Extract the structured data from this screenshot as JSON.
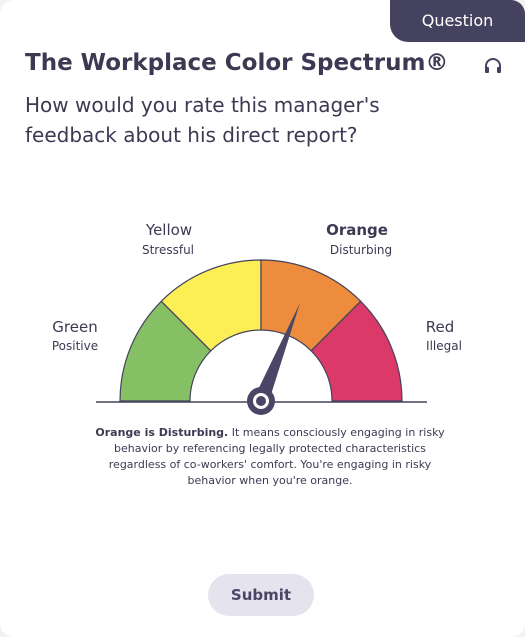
{
  "tab": "Question",
  "title": "The Workplace Color Spectrum®",
  "question": "How would you rate this manager's feedback about his direct report?",
  "gauge": {
    "segments": [
      {
        "label": "Green",
        "sublabel": "Positive"
      },
      {
        "label": "Yellow",
        "sublabel": "Stressful"
      },
      {
        "label": "Orange",
        "sublabel": "Disturbing"
      },
      {
        "label": "Red",
        "sublabel": "Illegal"
      }
    ]
  },
  "explanation": {
    "lead": "Orange is Disturbing.",
    "text": "It means consciously engaging in risky behavior by referencing legally protected characteristics regardless of co-workers' comfort. You're engaging in risky behavior when you're orange."
  },
  "submit": "Submit"
}
